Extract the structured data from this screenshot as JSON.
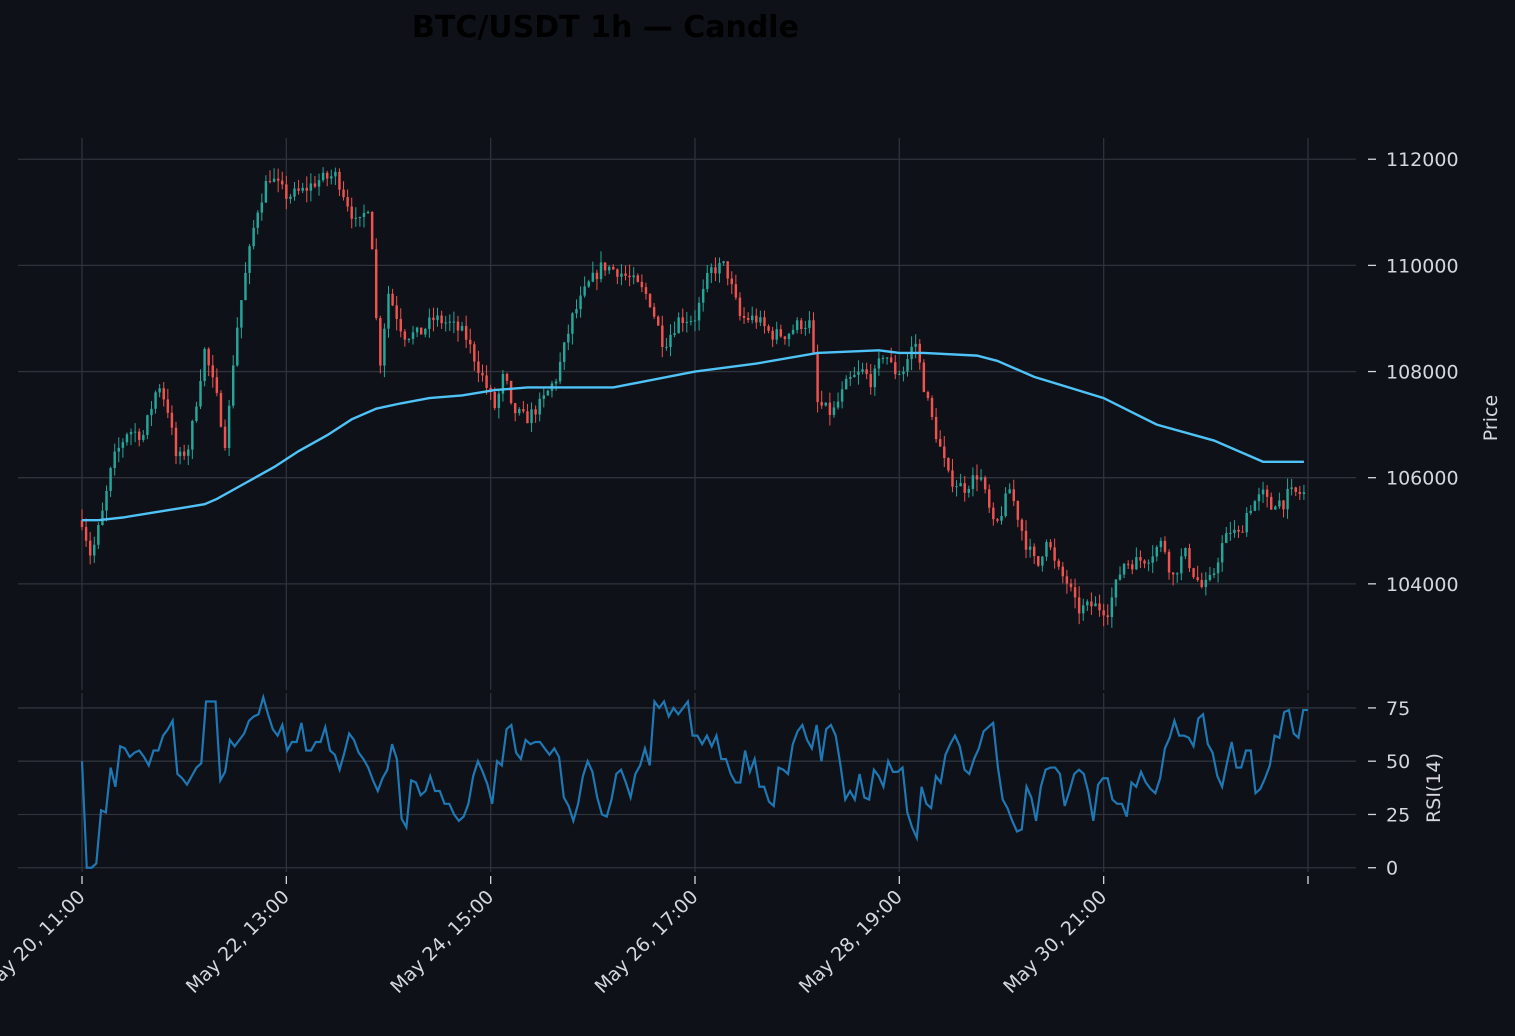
{
  "chart_data": {
    "type": "candlestick",
    "title": "BTC/USDT 1h — Candle",
    "colors": {
      "background": "#0e1117",
      "grid": "#2e333b",
      "text": "#d4d7dc",
      "up": "#26a69a",
      "down": "#ef5350",
      "sma": "#4fc3f7",
      "rsi": "#1f77b4"
    },
    "price_panel": {
      "ylabel": "Price",
      "ylim": [
        102000,
        112400
      ],
      "yticks": [
        104000,
        106000,
        108000,
        110000,
        112000
      ],
      "ytick_labels": [
        "104000",
        "106000",
        "108000",
        "110000",
        "112000"
      ],
      "grid": true
    },
    "rsi_panel": {
      "ylabel": "RSI(14)",
      "ylim": [
        -2,
        82
      ],
      "yticks": [
        0,
        25,
        50,
        75
      ],
      "ytick_labels": [
        "0",
        "25",
        "50",
        "75"
      ],
      "grid": true
    },
    "x_axis": {
      "tick_hours": [
        0,
        50,
        100,
        150,
        200,
        250,
        300
      ],
      "tick_labels": [
        "May 20, 11:00",
        "May 22, 13:00",
        "May 24, 15:00",
        "May 26, 17:00",
        "May 28, 19:00",
        "May 30, 21:00",
        ""
      ]
    },
    "close_anchors_hourly": [
      [
        0,
        105200
      ],
      [
        3,
        104500
      ],
      [
        7,
        105400
      ],
      [
        10,
        106300
      ],
      [
        15,
        106900
      ],
      [
        20,
        106800
      ],
      [
        25,
        107800
      ],
      [
        28,
        107300
      ],
      [
        31,
        106300
      ],
      [
        35,
        106600
      ],
      [
        40,
        108400
      ],
      [
        44,
        107500
      ],
      [
        47,
        106600
      ],
      [
        50,
        108600
      ],
      [
        53,
        109700
      ],
      [
        57,
        111000
      ],
      [
        61,
        111700
      ],
      [
        67,
        111300
      ],
      [
        72,
        111400
      ],
      [
        77,
        111600
      ],
      [
        83,
        111700
      ],
      [
        88,
        111000
      ],
      [
        90,
        110700
      ],
      [
        94,
        111200
      ],
      [
        97,
        108000
      ],
      [
        100,
        109500
      ],
      [
        105,
        108700
      ],
      [
        110,
        108700
      ],
      [
        115,
        109000
      ],
      [
        120,
        108900
      ],
      [
        125,
        108700
      ],
      [
        130,
        108000
      ],
      [
        135,
        107300
      ],
      [
        138,
        108000
      ],
      [
        140,
        107300
      ],
      [
        145,
        107100
      ],
      [
        150,
        107400
      ],
      [
        155,
        107900
      ],
      [
        160,
        109000
      ],
      [
        165,
        109600
      ],
      [
        170,
        110000
      ],
      [
        175,
        109900
      ],
      [
        180,
        109700
      ],
      [
        185,
        109400
      ],
      [
        190,
        108500
      ],
      [
        195,
        109000
      ],
      [
        200,
        109000
      ],
      [
        203,
        109500
      ],
      [
        205,
        109900
      ],
      [
        210,
        110000
      ],
      [
        215,
        109000
      ],
      [
        220,
        109000
      ],
      [
        225,
        108700
      ],
      [
        230,
        108700
      ],
      [
        234,
        108900
      ],
      [
        238,
        108900
      ],
      [
        240,
        107400
      ],
      [
        245,
        107200
      ],
      [
        250,
        107800
      ],
      [
        255,
        108000
      ],
      [
        258,
        107800
      ],
      [
        262,
        108400
      ],
      [
        265,
        108000
      ],
      [
        268,
        108000
      ],
      [
        272,
        108600
      ],
      [
        275,
        107700
      ],
      [
        278,
        107000
      ],
      [
        283,
        106000
      ],
      [
        288,
        105800
      ],
      [
        293,
        106100
      ],
      [
        298,
        105000
      ],
      [
        303,
        105800
      ],
      [
        308,
        104800
      ],
      [
        312,
        104300
      ],
      [
        315,
        104900
      ],
      [
        318,
        104300
      ],
      [
        322,
        104000
      ],
      [
        325,
        103500
      ],
      [
        330,
        103600
      ],
      [
        335,
        103500
      ],
      [
        340,
        104400
      ],
      [
        343,
        104400
      ],
      [
        348,
        104500
      ],
      [
        353,
        104800
      ],
      [
        356,
        104100
      ],
      [
        360,
        104600
      ],
      [
        363,
        104200
      ],
      [
        366,
        103900
      ],
      [
        369,
        104100
      ],
      [
        372,
        104700
      ],
      [
        375,
        105000
      ],
      [
        378,
        104900
      ],
      [
        380,
        105300
      ],
      [
        382,
        105500
      ],
      [
        384,
        105600
      ],
      [
        386,
        105700
      ],
      [
        388,
        105400
      ],
      [
        390,
        105600
      ],
      [
        392,
        105500
      ],
      [
        394,
        105700
      ],
      [
        396,
        105700
      ],
      [
        399,
        105700
      ]
    ],
    "candle_count": 300,
    "sma_overlay": {
      "points": [
        [
          0,
          105200
        ],
        [
          4,
          105200
        ],
        [
          10,
          105250
        ],
        [
          26,
          105450
        ],
        [
          30,
          105500
        ],
        [
          33,
          105600
        ],
        [
          40,
          105900
        ],
        [
          47,
          106200
        ],
        [
          53,
          106500
        ],
        [
          60,
          106800
        ],
        [
          66,
          107100
        ],
        [
          72,
          107300
        ],
        [
          78,
          107400
        ],
        [
          85,
          107500
        ],
        [
          93,
          107550
        ],
        [
          101,
          107650
        ],
        [
          109,
          107700
        ],
        [
          118,
          107700
        ],
        [
          130,
          107700
        ],
        [
          150,
          108000
        ],
        [
          165,
          108150
        ],
        [
          180,
          108350
        ],
        [
          195,
          108400
        ],
        [
          200,
          108350
        ],
        [
          206,
          108350
        ],
        [
          219,
          108300
        ],
        [
          224,
          108200
        ],
        [
          233,
          107900
        ],
        [
          250,
          107500
        ],
        [
          263,
          107000
        ],
        [
          277,
          106700
        ],
        [
          289,
          106300
        ],
        [
          299,
          106300
        ]
      ]
    },
    "rsi_series": [
      50,
      0,
      0,
      2,
      27,
      26,
      47,
      38,
      57,
      56,
      52,
      54,
      55,
      52,
      48,
      55,
      55,
      62,
      65,
      69,
      44,
      42,
      39,
      43,
      47,
      49,
      78,
      78,
      78,
      41,
      45,
      60,
      57,
      60,
      63,
      69,
      71,
      72,
      80,
      72,
      65,
      62,
      67,
      55,
      59,
      59,
      68,
      55,
      55,
      59,
      59,
      66,
      55,
      53,
      46,
      54,
      63,
      60,
      54,
      51,
      47,
      41,
      36,
      42,
      46,
      58,
      51,
      23,
      19,
      41,
      40,
      34,
      36,
      43,
      36,
      36,
      30,
      30,
      25,
      22,
      24,
      30,
      43,
      50,
      45,
      39,
      30,
      50,
      48,
      65,
      67,
      54,
      51,
      60,
      58,
      59,
      59,
      56,
      53,
      56,
      52,
      33,
      29,
      22,
      30,
      43,
      50,
      45,
      33,
      25,
      24,
      32,
      44,
      46,
      40,
      33,
      44,
      48,
      56,
      48,
      78,
      75,
      78,
      71,
      75,
      72,
      75,
      78,
      62,
      62,
      58,
      62,
      57,
      62,
      51,
      51,
      44,
      40,
      40,
      55,
      45,
      51,
      38,
      38,
      31,
      29,
      47,
      46,
      44,
      58,
      64,
      67,
      60,
      56,
      67,
      50,
      65,
      67,
      62,
      48,
      32,
      36,
      32,
      44,
      33,
      32,
      46,
      43,
      38,
      50,
      45,
      45,
      47,
      26,
      19,
      14,
      38,
      30,
      28,
      43,
      40,
      53,
      58,
      62,
      57,
      46,
      44,
      51,
      56,
      64,
      66,
      68,
      47,
      32,
      28,
      22,
      17,
      18,
      38,
      33,
      22,
      38,
      46,
      47,
      47,
      44,
      29,
      36,
      44,
      46,
      44,
      35,
      22,
      39,
      42,
      42,
      32,
      30,
      30,
      24,
      40,
      38,
      45,
      40,
      37,
      35,
      42,
      56,
      61,
      69,
      62,
      62,
      61,
      57,
      70,
      72,
      58,
      54,
      43,
      38,
      49,
      59,
      47,
      47,
      55,
      55,
      35,
      37,
      42,
      48,
      62,
      61,
      73,
      74,
      63,
      61,
      74,
      74
    ]
  }
}
